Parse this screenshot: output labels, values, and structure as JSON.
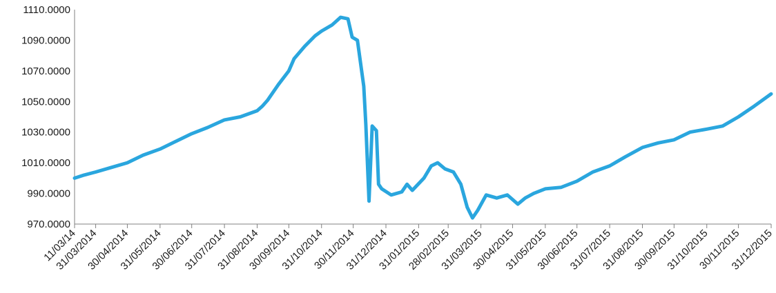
{
  "chart_data": {
    "type": "line",
    "title": "",
    "xlabel": "",
    "ylabel": "",
    "line_color": "#2AA6DE",
    "grid": false,
    "legend": "none",
    "ylim": [
      970,
      1110
    ],
    "y_ticks": [
      "970.0000",
      "990.0000",
      "1010.0000",
      "1030.0000",
      "1050.0000",
      "1070.0000",
      "1090.0000",
      "1110.0000"
    ],
    "x_ticks": [
      "11/03/14",
      "31/03/2014",
      "30/04/2014",
      "31/05/2014",
      "30/06/2014",
      "31/07/2014",
      "31/08/2014",
      "30/09/2014",
      "31/10/2014",
      "30/11/2014",
      "31/12/2014",
      "31/01/2015",
      "28/02/2015",
      "31/03/2015",
      "30/04/2015",
      "31/05/2015",
      "30/06/2015",
      "31/07/2015",
      "31/08/2015",
      "30/09/2015",
      "31/10/2015",
      "30/11/2015",
      "31/12/2015"
    ],
    "series": [
      {
        "x": [
          "2014-03-11",
          "2014-03-20",
          "2014-03-31",
          "2014-04-15",
          "2014-04-30",
          "2014-05-15",
          "2014-05-31",
          "2014-06-15",
          "2014-06-30",
          "2014-07-15",
          "2014-07-31",
          "2014-08-15",
          "2014-08-31",
          "2014-09-05",
          "2014-09-10",
          "2014-09-20",
          "2014-09-30",
          "2014-10-05",
          "2014-10-15",
          "2014-10-25",
          "2014-10-31",
          "2014-11-10",
          "2014-11-18",
          "2014-11-25",
          "2014-11-29",
          "2014-12-04",
          "2014-12-10",
          "2014-12-12",
          "2014-12-15",
          "2014-12-18",
          "2014-12-22",
          "2014-12-24",
          "2014-12-27",
          "2015-01-05",
          "2015-01-15",
          "2015-01-20",
          "2015-01-25",
          "2015-02-05",
          "2015-02-12",
          "2015-02-18",
          "2015-02-25",
          "2015-03-05",
          "2015-03-12",
          "2015-03-18",
          "2015-03-23",
          "2015-03-28",
          "2015-04-05",
          "2015-04-15",
          "2015-04-25",
          "2015-05-05",
          "2015-05-12",
          "2015-05-20",
          "2015-05-31",
          "2015-06-15",
          "2015-06-30",
          "2015-07-15",
          "2015-07-31",
          "2015-08-15",
          "2015-08-31",
          "2015-09-15",
          "2015-09-30",
          "2015-10-15",
          "2015-10-31",
          "2015-11-15",
          "2015-11-30",
          "2015-12-15",
          "2015-12-31"
        ],
        "values": [
          1000.0,
          1002.0,
          1004.0,
          1007.0,
          1010.0,
          1015.0,
          1019.0,
          1024.0,
          1029.0,
          1033.0,
          1038.0,
          1040.0,
          1044.0,
          1047.0,
          1051.0,
          1061.0,
          1070.0,
          1078.0,
          1086.0,
          1093.0,
          1096.0,
          1100.0,
          1105.0,
          1104.0,
          1092.0,
          1090.0,
          1060.0,
          1035.0,
          985.0,
          1034.0,
          1031.0,
          996.0,
          993.0,
          989.0,
          991.0,
          996.0,
          992.0,
          1000.0,
          1008.0,
          1010.0,
          1006.0,
          1004.0,
          996.0,
          981.0,
          974.0,
          979.0,
          989.0,
          987.0,
          989.0,
          983.0,
          987.0,
          990.0,
          993.0,
          994.0,
          998.0,
          1004.0,
          1008.0,
          1014.0,
          1020.0,
          1023.0,
          1025.0,
          1030.0,
          1032.0,
          1034.0,
          1040.0,
          1047.0,
          1055.0
        ]
      }
    ]
  }
}
